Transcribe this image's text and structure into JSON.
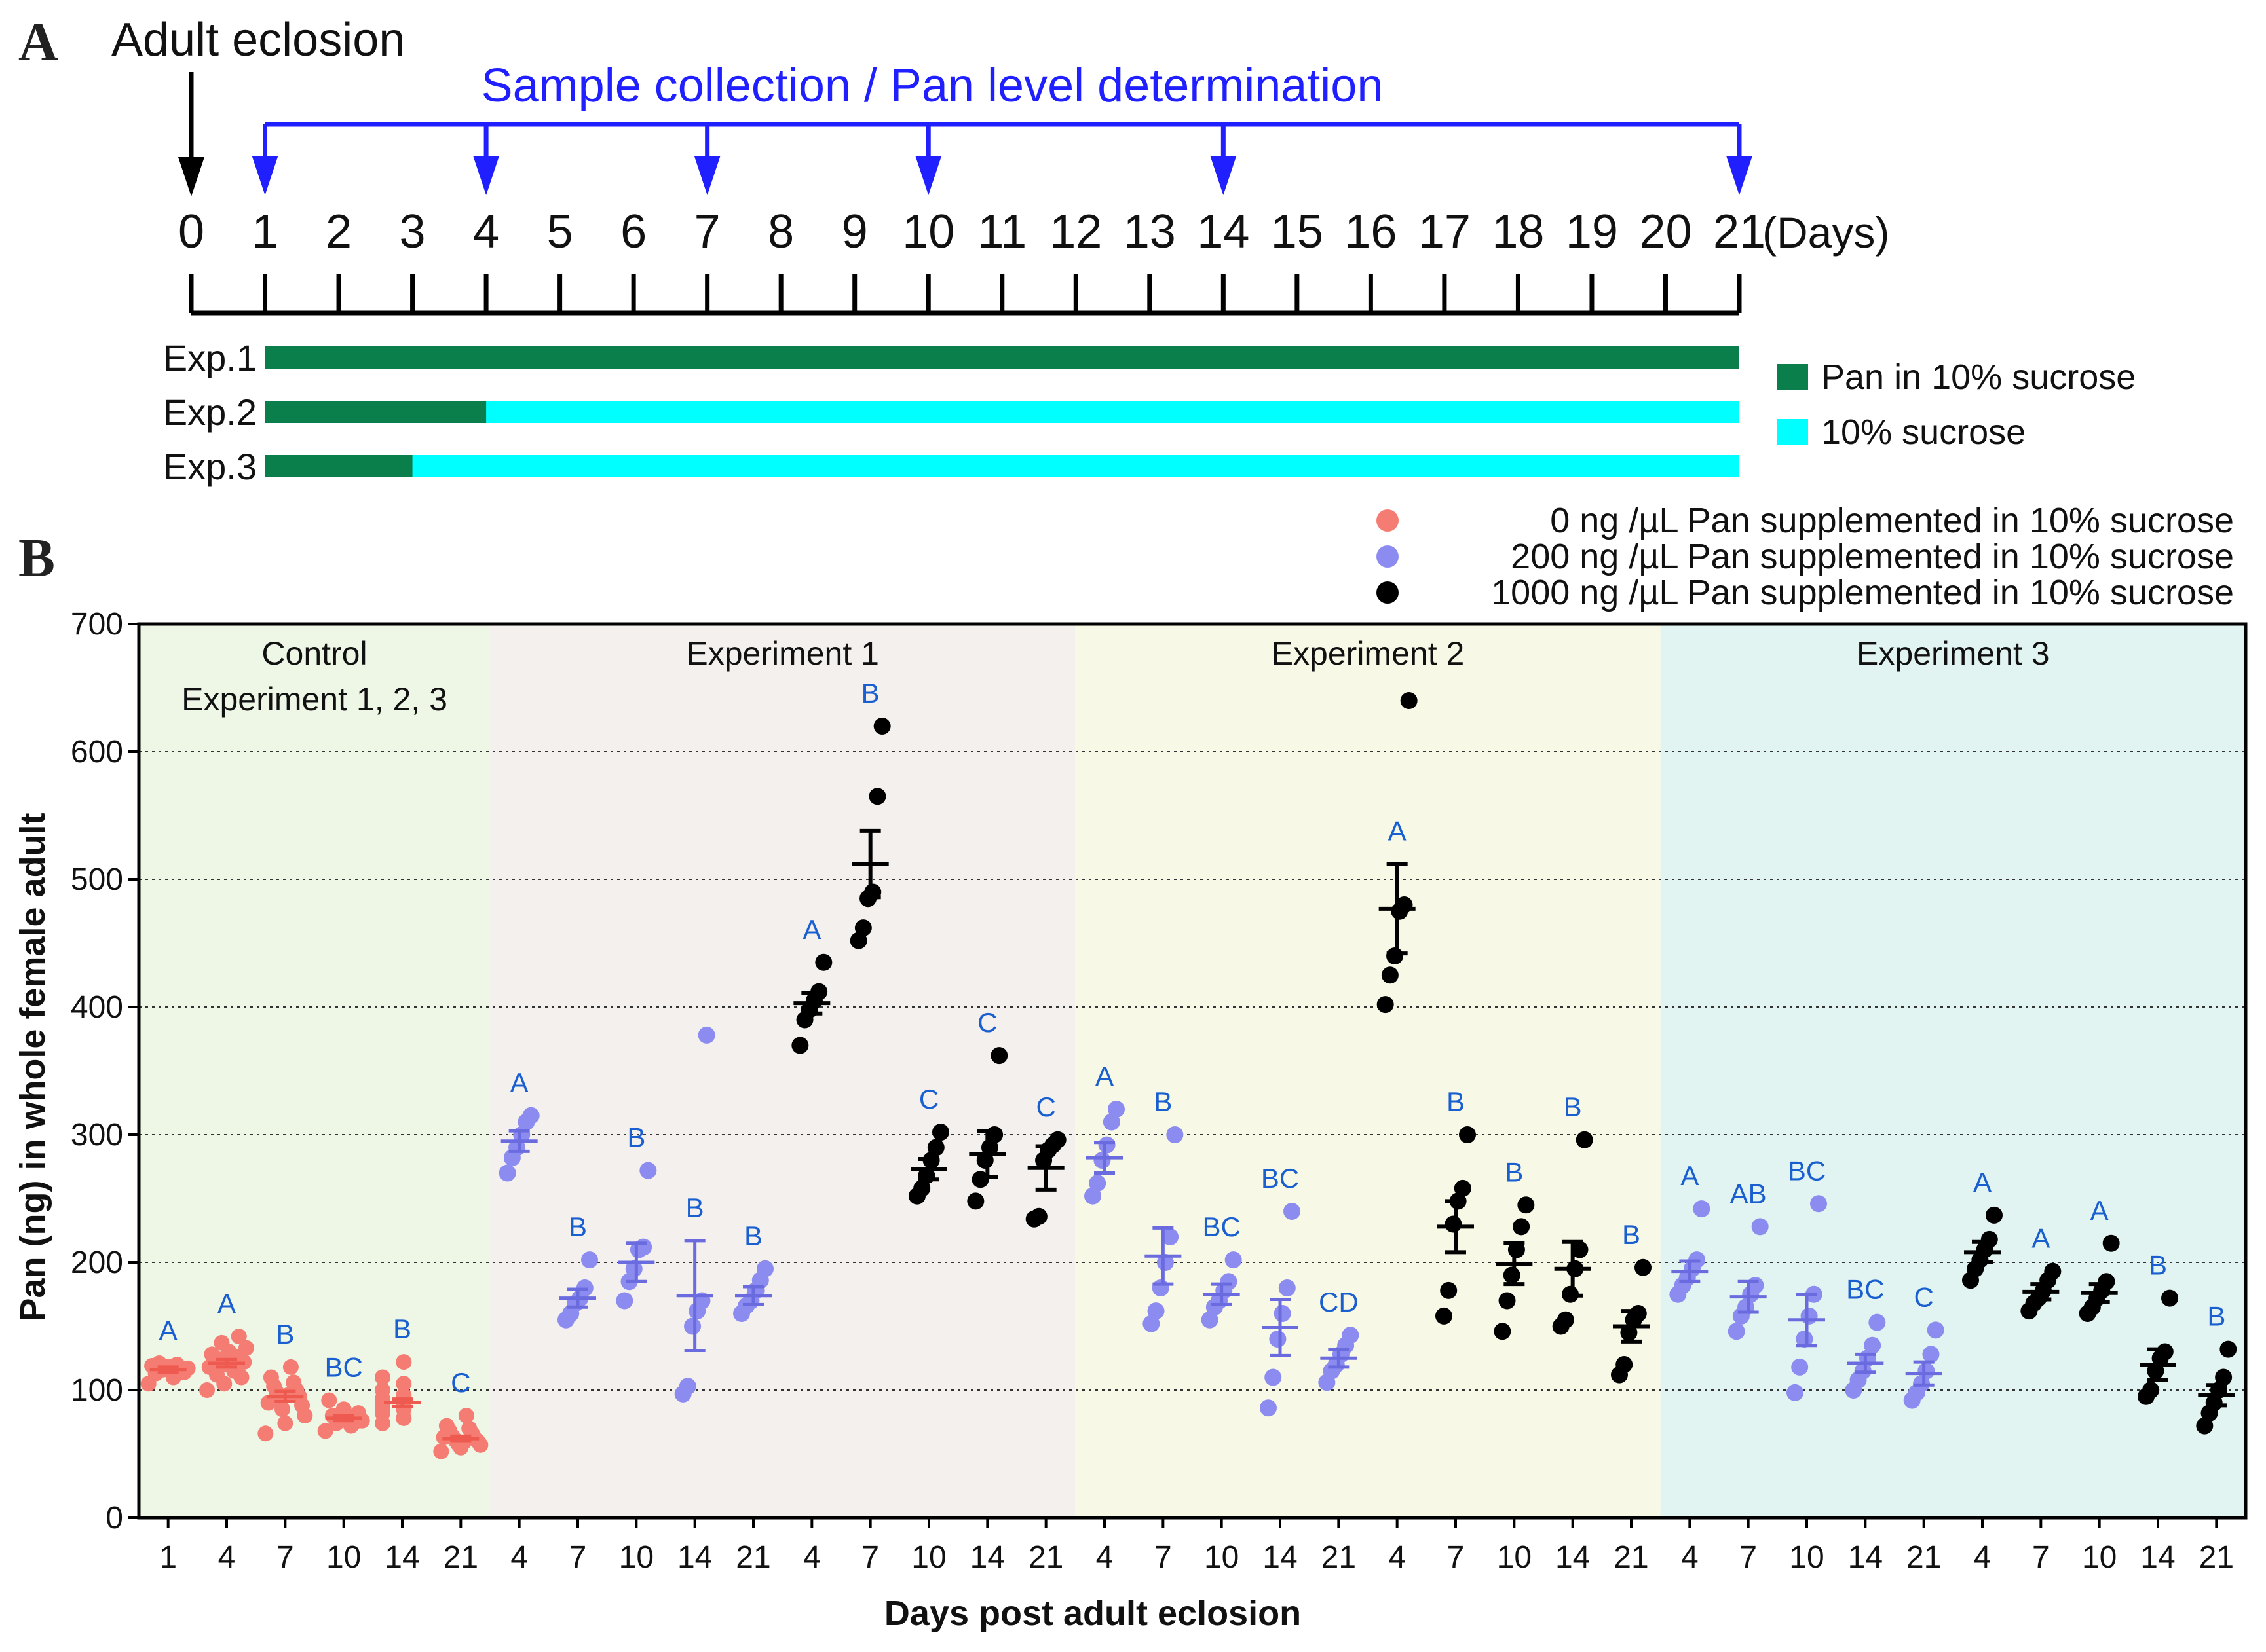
{
  "panelA": {
    "letter": "A",
    "eclosion_label": "Adult eclosion",
    "sampling_label": "Sample collection / Pan level determination",
    "days": [
      "0",
      "1",
      "2",
      "3",
      "4",
      "5",
      "6",
      "7",
      "8",
      "9",
      "10",
      "11",
      "12",
      "13",
      "14",
      "15",
      "16",
      "17",
      "18",
      "19",
      "20",
      "21"
    ],
    "days_unit": "(Days)",
    "sampling_days": [
      1,
      4,
      7,
      10,
      14,
      21
    ],
    "experiments": [
      {
        "label": "Exp.1",
        "pan_from": 1,
        "pan_to": 21,
        "sucrose_to": 21
      },
      {
        "label": "Exp.2",
        "pan_from": 1,
        "pan_to": 4,
        "sucrose_to": 21
      },
      {
        "label": "Exp.3",
        "pan_from": 1,
        "pan_to": 3,
        "sucrose_to": 21
      }
    ],
    "legend": [
      {
        "label": "Pan in 10% sucrose",
        "color": "#0a7f4b"
      },
      {
        "label": "10% sucrose",
        "color": "#00ffff"
      }
    ],
    "colors": {
      "black_arrow": "#000000",
      "blue_arrow": "#1f1fff"
    }
  },
  "panelB": {
    "letter": "B",
    "legend": [
      {
        "label": "0 ng /µL Pan supplemented in 10% sucrose",
        "color": "#f47c72",
        "text_color": "#ee2a24"
      },
      {
        "label": "200 ng /µL Pan supplemented in 10% sucrose",
        "color": "#8c8cf0",
        "text_color": "#1f6fd6"
      },
      {
        "label": "1000 ng /µL Pan supplemented in 10% sucrose",
        "color": "#000000",
        "text_color": "#111111"
      }
    ]
  },
  "chart_data": {
    "type": "scatter",
    "xlabel": "Days post adult eclosion",
    "ylabel": "Pan (ng) in whole female adult",
    "ylim": [
      0,
      700
    ],
    "yticks": [
      0,
      100,
      200,
      300,
      400,
      500,
      600,
      700
    ],
    "grid": "horizontal dotted",
    "regions": [
      {
        "title": "Control",
        "subtitle": "Experiment 1, 2, 3",
        "bg": "#eef6e6",
        "slots": 6
      },
      {
        "title": "Experiment 1",
        "bg": "#f4f0ee",
        "slots": 10
      },
      {
        "title": "Experiment 2",
        "bg": "#f7f9e6",
        "slots": 10
      },
      {
        "title": "Experiment 3",
        "bg": "#e2f4f1",
        "slots": 10
      }
    ],
    "series_colors": {
      "0": "#f47c72",
      "200": "#8c8cf0",
      "1000": "#000000"
    },
    "groups": [
      {
        "region": 0,
        "day": "1",
        "dose": "0",
        "mean": 116,
        "sem": 2,
        "letter": "A",
        "points": [
          105,
          110,
          113,
          115,
          116,
          117,
          118,
          119,
          120,
          121,
          114,
          118
        ]
      },
      {
        "region": 0,
        "day": "4",
        "dose": "0",
        "mean": 121,
        "sem": 3,
        "letter": "A",
        "points": [
          100,
          105,
          110,
          112,
          115,
          118,
          120,
          122,
          124,
          126,
          128,
          130,
          133,
          137,
          142,
          118,
          123
        ]
      },
      {
        "region": 0,
        "day": "7",
        "dose": "0",
        "mean": 95,
        "sem": 4,
        "letter": "B",
        "points": [
          66,
          74,
          80,
          85,
          88,
          92,
          95,
          98,
          100,
          103,
          106,
          110,
          118,
          90,
          96
        ]
      },
      {
        "region": 0,
        "day": "10",
        "dose": "0",
        "mean": 78,
        "sem": 2,
        "letter": "BC",
        "points": [
          68,
          72,
          74,
          76,
          78,
          80,
          82,
          85,
          92,
          75,
          79
        ]
      },
      {
        "region": 0,
        "day": "14",
        "dose": "0",
        "mean": 90,
        "sem": 3,
        "letter": "B",
        "points": [
          74,
          78,
          82,
          85,
          88,
          90,
          93,
          96,
          100,
          105,
          110,
          122,
          87,
          94
        ]
      },
      {
        "region": 0,
        "day": "21",
        "dose": "0",
        "mean": 62,
        "sem": 2,
        "letter": "C",
        "points": [
          52,
          55,
          57,
          58,
          60,
          61,
          62,
          64,
          66,
          68,
          70,
          72,
          80,
          63,
          59
        ]
      },
      {
        "region": 1,
        "day": "4",
        "dose": "200",
        "mean": 295,
        "sem": 8,
        "letter": "A",
        "points": [
          270,
          282,
          290,
          300,
          310,
          315
        ]
      },
      {
        "region": 1,
        "day": "7",
        "dose": "200",
        "mean": 172,
        "sem": 7,
        "letter": "B",
        "points": [
          155,
          160,
          168,
          172,
          180,
          202
        ]
      },
      {
        "region": 1,
        "day": "10",
        "dose": "200",
        "mean": 200,
        "sem": 15,
        "letter": "B",
        "points": [
          170,
          185,
          195,
          210,
          212,
          272
        ]
      },
      {
        "region": 1,
        "day": "14",
        "dose": "200",
        "mean": 174,
        "sem": 43,
        "letter": "B",
        "points": [
          97,
          103,
          150,
          162,
          170,
          378
        ]
      },
      {
        "region": 1,
        "day": "21",
        "dose": "200",
        "mean": 174,
        "sem": 7,
        "letter": "B",
        "points": [
          160,
          166,
          170,
          178,
          186,
          195
        ]
      },
      {
        "region": 1,
        "day": "4",
        "dose": "1000",
        "mean": 403,
        "sem": 8,
        "letter": "A",
        "points": [
          370,
          390,
          398,
          405,
          412,
          435
        ]
      },
      {
        "region": 1,
        "day": "7",
        "dose": "1000",
        "mean": 512,
        "sem": 26,
        "letter": "B",
        "points": [
          452,
          462,
          485,
          490,
          565,
          620
        ]
      },
      {
        "region": 1,
        "day": "10",
        "dose": "1000",
        "mean": 273,
        "sem": 8,
        "letter": "C",
        "points": [
          252,
          258,
          268,
          280,
          290,
          302
        ]
      },
      {
        "region": 1,
        "day": "14",
        "dose": "1000",
        "mean": 285,
        "sem": 18,
        "letter": "C",
        "points": [
          248,
          265,
          280,
          290,
          300,
          362
        ]
      },
      {
        "region": 1,
        "day": "21",
        "dose": "1000",
        "mean": 274,
        "sem": 17,
        "letter": "C",
        "points": [
          234,
          236,
          280,
          288,
          292,
          296
        ]
      },
      {
        "region": 2,
        "day": "4",
        "dose": "200",
        "mean": 282,
        "sem": 12,
        "letter": "A",
        "points": [
          252,
          262,
          280,
          292,
          310,
          320
        ]
      },
      {
        "region": 2,
        "day": "7",
        "dose": "200",
        "mean": 205,
        "sem": 22,
        "letter": "B",
        "points": [
          152,
          162,
          180,
          200,
          220,
          300
        ]
      },
      {
        "region": 2,
        "day": "10",
        "dose": "200",
        "mean": 175,
        "sem": 8,
        "letter": "BC",
        "points": [
          155,
          165,
          170,
          178,
          185,
          202
        ]
      },
      {
        "region": 2,
        "day": "14",
        "dose": "200",
        "mean": 149,
        "sem": 22,
        "letter": "BC",
        "points": [
          86,
          110,
          140,
          160,
          180,
          240
        ]
      },
      {
        "region": 2,
        "day": "21",
        "dose": "200",
        "mean": 125,
        "sem": 7,
        "letter": "CD",
        "points": [
          106,
          115,
          120,
          128,
          135,
          143
        ]
      },
      {
        "region": 2,
        "day": "4",
        "dose": "1000",
        "mean": 477,
        "sem": 35,
        "letter": "A",
        "points": [
          402,
          425,
          440,
          475,
          480,
          640
        ]
      },
      {
        "region": 2,
        "day": "7",
        "dose": "1000",
        "mean": 228,
        "sem": 20,
        "letter": "B",
        "points": [
          158,
          178,
          230,
          248,
          258,
          300
        ]
      },
      {
        "region": 2,
        "day": "10",
        "dose": "1000",
        "mean": 199,
        "sem": 16,
        "letter": "B",
        "points": [
          146,
          170,
          190,
          210,
          228,
          245
        ]
      },
      {
        "region": 2,
        "day": "14",
        "dose": "1000",
        "mean": 195,
        "sem": 21,
        "letter": "B",
        "points": [
          150,
          155,
          175,
          195,
          210,
          296
        ]
      },
      {
        "region": 2,
        "day": "21",
        "dose": "1000",
        "mean": 150,
        "sem": 12,
        "letter": "B",
        "points": [
          112,
          120,
          145,
          155,
          160,
          196
        ]
      },
      {
        "region": 3,
        "day": "4",
        "dose": "200",
        "mean": 193,
        "sem": 8,
        "letter": "A",
        "points": [
          175,
          182,
          188,
          195,
          202,
          242
        ]
      },
      {
        "region": 3,
        "day": "7",
        "dose": "200",
        "mean": 173,
        "sem": 12,
        "letter": "AB",
        "points": [
          146,
          158,
          165,
          175,
          182,
          228
        ]
      },
      {
        "region": 3,
        "day": "10",
        "dose": "200",
        "mean": 155,
        "sem": 20,
        "letter": "BC",
        "points": [
          98,
          118,
          140,
          158,
          175,
          246
        ]
      },
      {
        "region": 3,
        "day": "14",
        "dose": "200",
        "mean": 121,
        "sem": 7,
        "letter": "BC",
        "points": [
          100,
          108,
          115,
          125,
          135,
          153
        ]
      },
      {
        "region": 3,
        "day": "21",
        "dose": "200",
        "mean": 113,
        "sem": 9,
        "letter": "C",
        "points": [
          92,
          98,
          105,
          115,
          128,
          147
        ]
      },
      {
        "region": 3,
        "day": "4",
        "dose": "1000",
        "mean": 208,
        "sem": 8,
        "letter": "A",
        "points": [
          186,
          195,
          202,
          210,
          218,
          237
        ]
      },
      {
        "region": 3,
        "day": "7",
        "dose": "1000",
        "mean": 177,
        "sem": 6,
        "letter": "A",
        "points": [
          162,
          168,
          172,
          178,
          186,
          193
        ]
      },
      {
        "region": 3,
        "day": "10",
        "dose": "1000",
        "mean": 176,
        "sem": 7,
        "letter": "A",
        "points": [
          160,
          165,
          172,
          178,
          185,
          215
        ]
      },
      {
        "region": 3,
        "day": "14",
        "dose": "1000",
        "mean": 120,
        "sem": 12,
        "letter": "B",
        "points": [
          95,
          100,
          115,
          125,
          130,
          172
        ]
      },
      {
        "region": 3,
        "day": "21",
        "dose": "1000",
        "mean": 96,
        "sem": 8,
        "letter": "B",
        "points": [
          72,
          82,
          90,
          100,
          110,
          132
        ]
      }
    ]
  }
}
